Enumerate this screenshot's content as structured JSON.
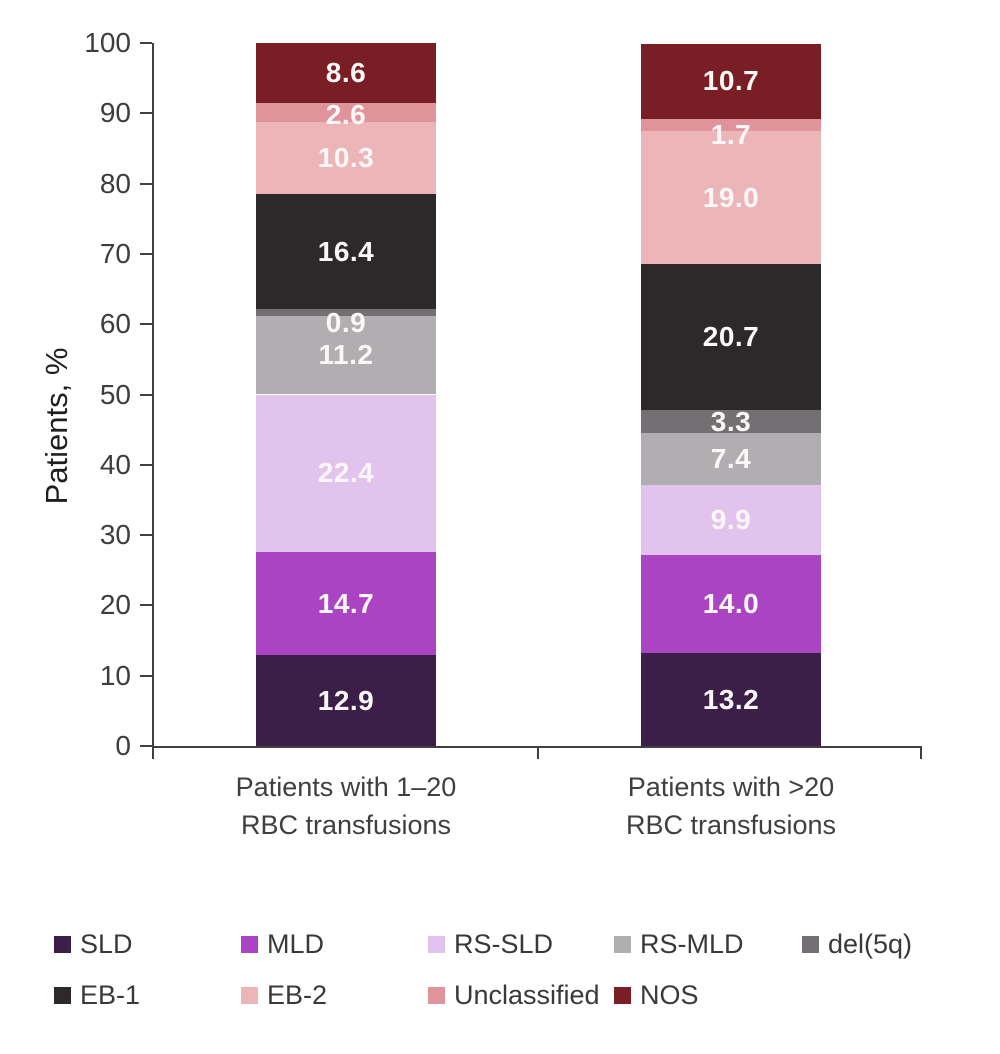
{
  "chart_data": {
    "type": "bar",
    "stacked": true,
    "title": "",
    "ylabel": "Patients, %",
    "xlabel": "",
    "ylim": [
      0,
      100
    ],
    "yticks": [
      0,
      10,
      20,
      30,
      40,
      50,
      60,
      70,
      80,
      90,
      100
    ],
    "grid": false,
    "legend_position": "bottom",
    "categories": [
      {
        "line1": "Patients with 1–20",
        "line2": "RBC transfusions"
      },
      {
        "line1": "Patients with >20",
        "line2": "RBC transfusions"
      }
    ],
    "series": [
      {
        "name": "SLD",
        "color": "#3c1f49",
        "values": [
          12.9,
          13.2
        ]
      },
      {
        "name": "MLD",
        "color": "#ab44c3",
        "values": [
          14.7,
          14.0
        ]
      },
      {
        "name": "RS-SLD",
        "color": "#e2c3ed",
        "values": [
          22.4,
          9.9
        ]
      },
      {
        "name": "RS-MLD",
        "color": "#b1aeb1",
        "values": [
          11.2,
          7.4
        ]
      },
      {
        "name": "del(5q)",
        "color": "#737073",
        "values": [
          0.9,
          3.3
        ],
        "label_dy": [
          10,
          0
        ]
      },
      {
        "name": "EB-1",
        "color": "#2d292a",
        "values": [
          16.4,
          20.7
        ]
      },
      {
        "name": "EB-2",
        "color": "#ecb5b7",
        "values": [
          10.3,
          19.0
        ]
      },
      {
        "name": "Unclassified",
        "color": "#e0939b",
        "values": [
          2.6,
          1.7
        ],
        "label_dy": [
          2,
          10
        ]
      },
      {
        "name": "NOS",
        "color": "#7a1e25",
        "values": [
          8.6,
          10.7
        ]
      }
    ],
    "value_label_color": "#fbf7f7",
    "axis_color": "#404040",
    "tick_label_color": "#3d3d3d"
  }
}
